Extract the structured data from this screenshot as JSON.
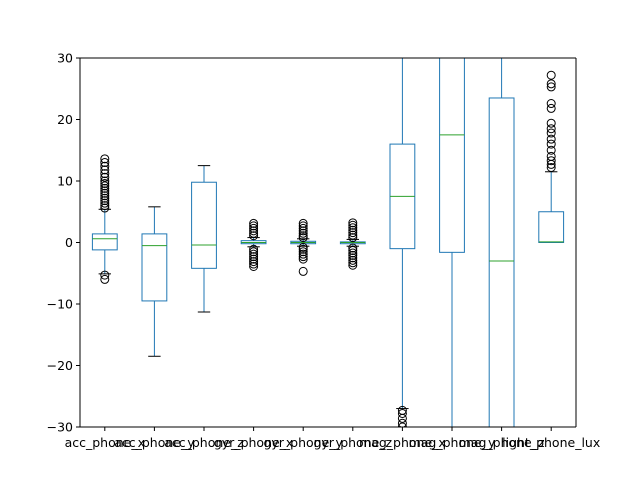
{
  "chart_data": {
    "type": "box",
    "title": "",
    "xlabel": "",
    "ylabel": "",
    "ylim": [
      -30,
      30
    ],
    "yticks": [
      -30,
      -20,
      -10,
      0,
      10,
      20,
      30
    ],
    "ytick_labels": [
      "−30",
      "−20",
      "−10",
      "0",
      "10",
      "20",
      "30"
    ],
    "grid": false,
    "legend": "none",
    "colors": {
      "box": "#1f77b4",
      "median": "#2ca02c",
      "flier": "#000000",
      "axis": "#000000"
    },
    "categories": [
      "acc_phone_x",
      "acc_phone_y",
      "acc_phone_z",
      "gyr_phone_x",
      "gyr_phone_y",
      "gyr_phone_z",
      "mag_phone_x",
      "mag_phone_y",
      "mag_phone_z",
      "light_phone_lux"
    ],
    "boxes": [
      {
        "name": "acc_phone_x",
        "q1": -1.2,
        "median": 0.6,
        "q3": 1.4,
        "whisker_low": -5.1,
        "whisker_high": 5.4,
        "outliers": [
          -6.0,
          -5.3,
          5.6,
          6.0,
          6.4,
          6.8,
          7.2,
          7.6,
          8.0,
          8.4,
          8.8,
          9.2,
          9.6,
          10.0,
          10.6,
          11.2,
          11.8,
          12.4,
          13.0,
          13.6
        ]
      },
      {
        "name": "acc_phone_y",
        "q1": -9.5,
        "median": -0.5,
        "q3": 1.4,
        "whisker_low": -18.5,
        "whisker_high": 5.8,
        "outliers": []
      },
      {
        "name": "acc_phone_z",
        "q1": -4.2,
        "median": -0.4,
        "q3": 9.8,
        "whisker_low": -11.3,
        "whisker_high": 12.5,
        "outliers": []
      },
      {
        "name": "gyr_phone_x",
        "q1": -0.2,
        "median": 0.0,
        "q3": 0.3,
        "whisker_low": -0.7,
        "whisker_high": 0.8,
        "outliers": [
          -3.9,
          -3.5,
          -3.1,
          -2.7,
          -2.3,
          -1.9,
          -1.5,
          -1.1,
          1.1,
          1.5,
          1.9,
          2.3,
          2.7,
          3.1
        ]
      },
      {
        "name": "gyr_phone_y",
        "q1": -0.2,
        "median": 0.0,
        "q3": 0.2,
        "whisker_low": -0.6,
        "whisker_high": 0.6,
        "outliers": [
          -4.7,
          -2.7,
          -2.3,
          -1.9,
          -1.5,
          -1.1,
          -0.8,
          0.8,
          1.1,
          1.5,
          1.9,
          2.3,
          2.7,
          3.1
        ]
      },
      {
        "name": "gyr_phone_z",
        "q1": -0.2,
        "median": 0.0,
        "q3": 0.1,
        "whisker_low": -0.6,
        "whisker_high": 0.5,
        "outliers": [
          -3.7,
          -3.3,
          -2.9,
          -2.5,
          -2.1,
          -1.7,
          -1.3,
          -0.9,
          0.8,
          1.2,
          1.6,
          2.0,
          2.4,
          2.8,
          3.2
        ]
      },
      {
        "name": "mag_phone_x",
        "q1": -1.0,
        "median": 7.5,
        "q3": 16.0,
        "whisker_low": -27.0,
        "whisker_high": 35.0,
        "outliers": [
          -27.3,
          -27.8,
          -28.6,
          -29.4,
          -30.0
        ]
      },
      {
        "name": "mag_phone_y",
        "q1": -1.6,
        "median": 17.5,
        "q3": 35.0,
        "whisker_low": -35.0,
        "whisker_high": 35.0,
        "outliers": []
      },
      {
        "name": "mag_phone_z",
        "q1": -35.0,
        "median": -3.0,
        "q3": 23.5,
        "whisker_low": -35.0,
        "whisker_high": 35.0,
        "outliers": []
      },
      {
        "name": "light_phone_lux",
        "q1": 0.0,
        "median": 0.1,
        "q3": 5.0,
        "whisker_low": 0.0,
        "whisker_high": 11.5,
        "outliers": [
          12.2,
          12.7,
          13.3,
          14.0,
          15.0,
          16.0,
          16.8,
          17.8,
          18.5,
          19.4,
          21.8,
          22.6,
          25.3,
          25.8,
          27.2
        ]
      }
    ]
  }
}
